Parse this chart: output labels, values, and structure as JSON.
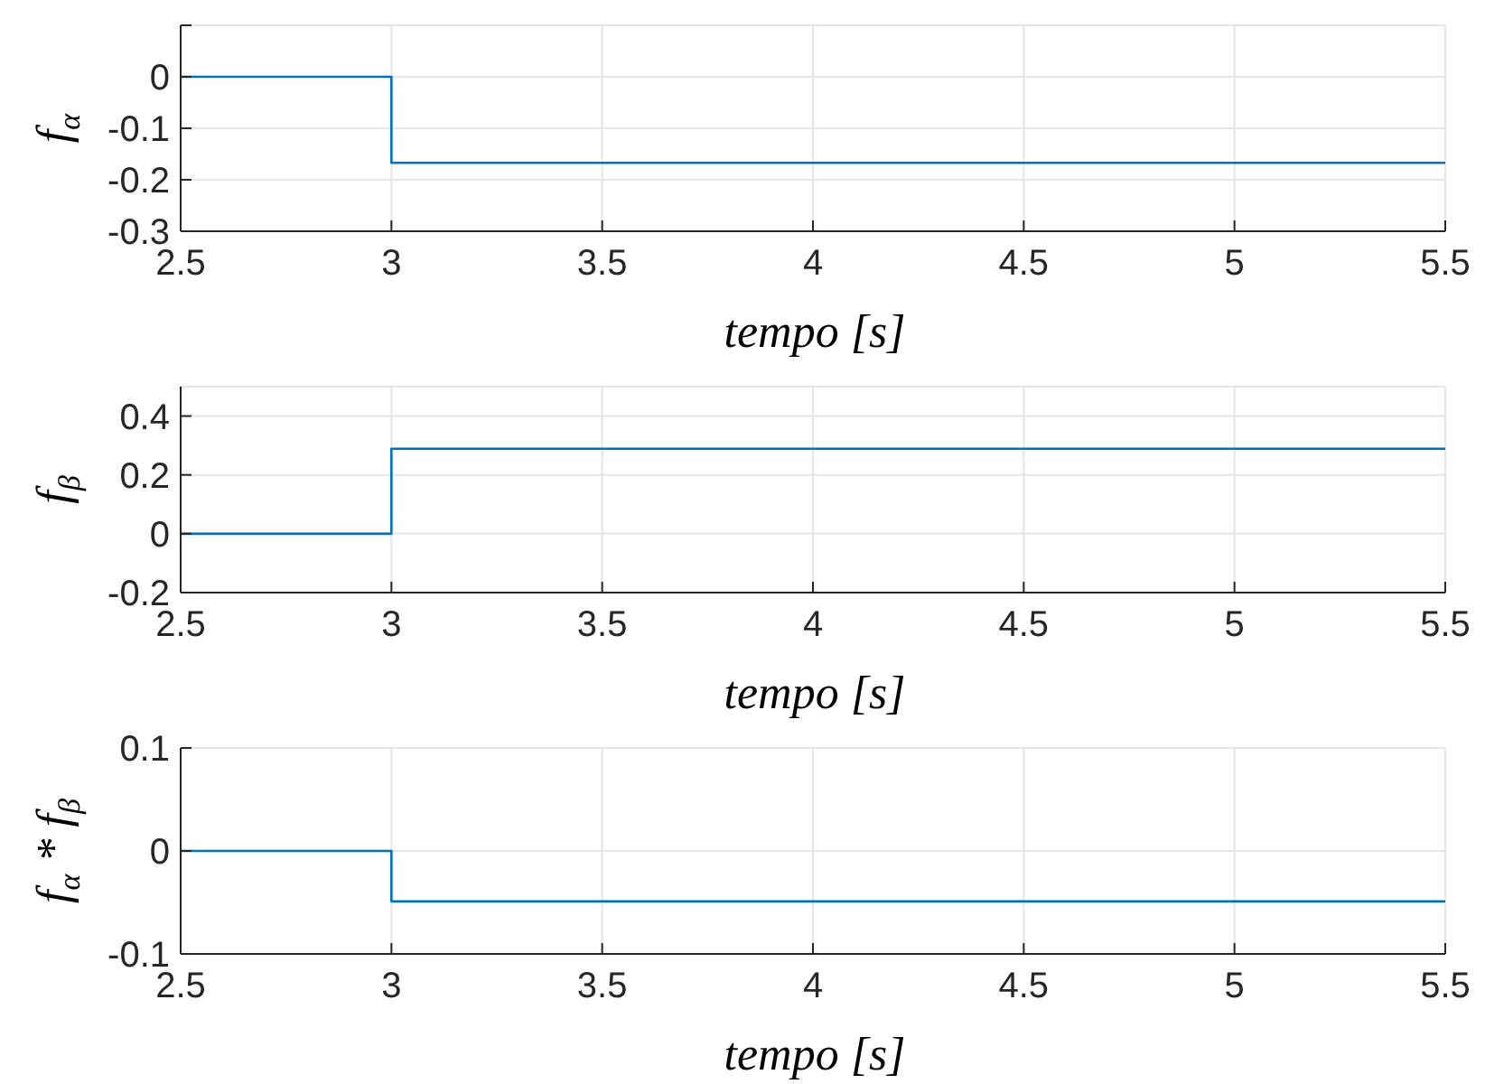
{
  "chart_data": [
    {
      "type": "step",
      "ylabel": "f$_{α}$",
      "xlabel": "tempo [s]",
      "x": [
        2.5,
        3,
        5.5
      ],
      "series": [
        {
          "color": "#0072bd",
          "values": [
            0,
            -0.167,
            -0.167
          ]
        }
      ],
      "xlim": [
        2.5,
        5.5
      ],
      "xticks": [
        2.5,
        3,
        3.5,
        4,
        4.5,
        5,
        5.5
      ],
      "ylim": [
        -0.3,
        0.1
      ],
      "yticks": [
        -0.3,
        -0.2,
        -0.1,
        0,
        {
          "value": 0.1,
          "label": null
        }
      ],
      "grid": true
    },
    {
      "type": "step",
      "ylabel": "f$_{β}$",
      "xlabel": "tempo [s]",
      "x": [
        2.5,
        3,
        5.5
      ],
      "series": [
        {
          "color": "#0072bd",
          "values": [
            0,
            0.289,
            0.289
          ]
        }
      ],
      "xlim": [
        2.5,
        5.5
      ],
      "xticks": [
        2.5,
        3,
        3.5,
        4,
        4.5,
        5,
        5.5
      ],
      "ylim": [
        -0.2,
        0.5
      ],
      "yticks": [
        -0.2,
        0,
        0.2,
        0.4
      ],
      "grid": true
    },
    {
      "type": "step",
      "ylabel": "f$_{α}$ * f$_{β}$",
      "xlabel": "tempo [s]",
      "x": [
        2.5,
        3,
        5.5
      ],
      "series": [
        {
          "color": "#0072bd",
          "values": [
            0,
            -0.049,
            -0.049
          ]
        }
      ],
      "xlim": [
        2.5,
        5.5
      ],
      "xticks": [
        2.5,
        3,
        3.5,
        4,
        4.5,
        5,
        5.5
      ],
      "ylim": [
        -0.1,
        0.1
      ],
      "yticks": [
        -0.1,
        0,
        0.1
      ],
      "grid": true
    }
  ]
}
